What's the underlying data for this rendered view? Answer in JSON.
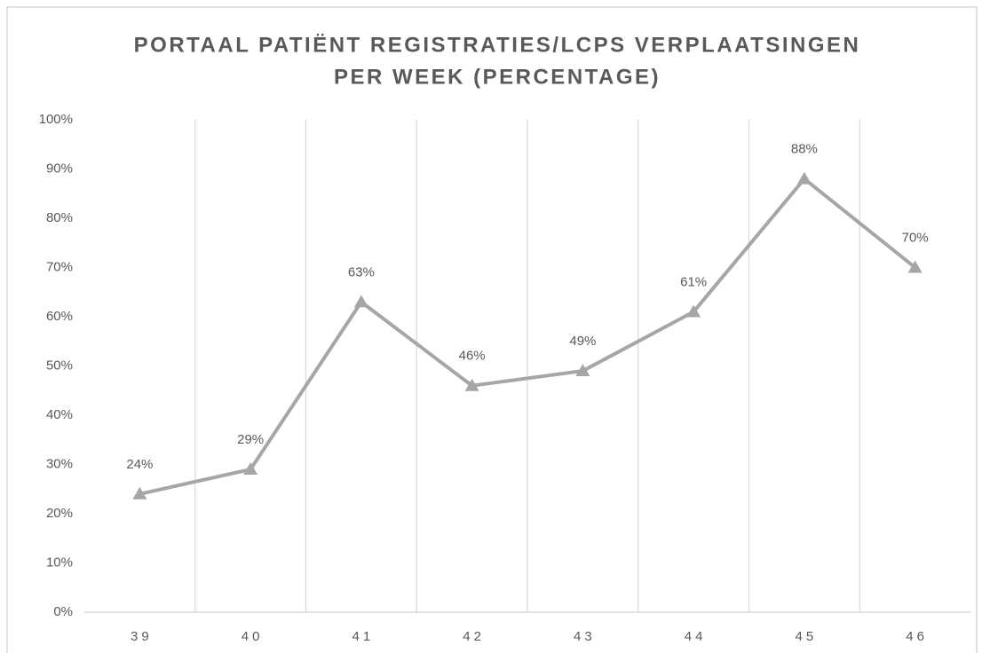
{
  "chart_data": {
    "type": "line",
    "title": [
      "PORTAAL PATIËNT REGISTRATIES/LCPS VERPLAATSINGEN",
      "PER WEEK (PERCENTAGE)"
    ],
    "categories": [
      "39",
      "40",
      "41",
      "42",
      "43",
      "44",
      "45",
      "46"
    ],
    "series": [
      {
        "color": "#a6a6a6",
        "values": [
          24,
          29,
          63,
          46,
          49,
          61,
          88,
          70
        ],
        "value_labels": [
          "24%",
          "29%",
          "63%",
          "46%",
          "49%",
          "61%",
          "88%",
          "70%"
        ]
      }
    ],
    "ylim": [
      0,
      100
    ],
    "yticks": [
      {
        "value": 0,
        "label": "0%"
      },
      {
        "value": 10,
        "label": "10%"
      },
      {
        "value": 20,
        "label": "20%"
      },
      {
        "value": 30,
        "label": "30%"
      },
      {
        "value": 40,
        "label": "40%"
      },
      {
        "value": 50,
        "label": "50%"
      },
      {
        "value": 60,
        "label": "60%"
      },
      {
        "value": 70,
        "label": "70%"
      },
      {
        "value": 80,
        "label": "80%"
      },
      {
        "value": 90,
        "label": "90%"
      },
      {
        "value": 100,
        "label": "100%"
      }
    ],
    "grid": false
  }
}
